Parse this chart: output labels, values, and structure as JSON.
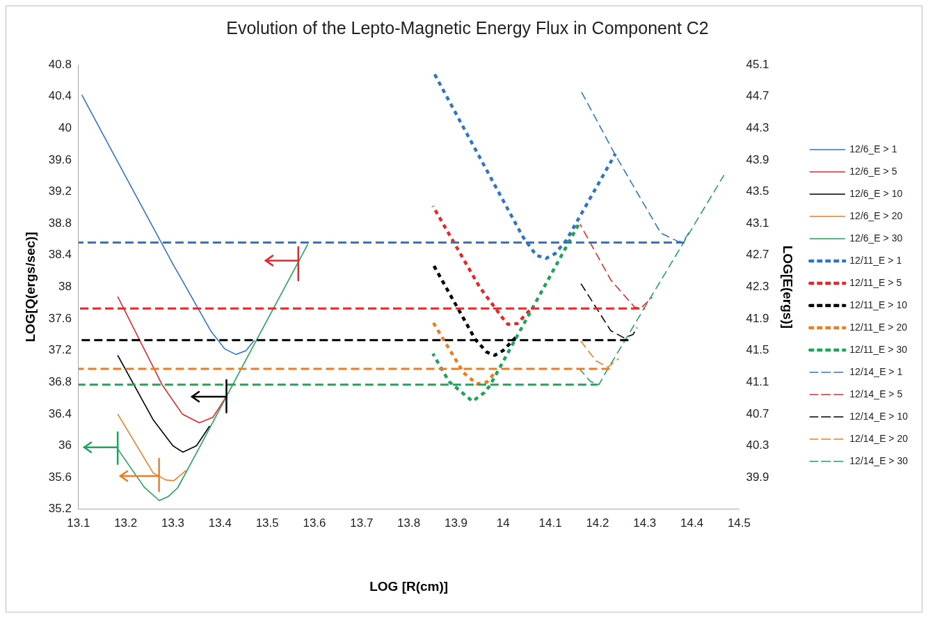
{
  "chart_data": {
    "type": "line",
    "title": "Evolution of the Lepto-Magnetic Energy Flux in Component C2",
    "xlabel": "LOG [R(cm)]",
    "ylabel": "LOG[Q(ergs/sec)]",
    "y2label": "LOG[E(ergs)]",
    "xlim": [
      13.1,
      14.5
    ],
    "xticks": [
      13.1,
      13.2,
      13.3,
      13.4,
      13.5,
      13.6,
      13.7,
      13.8,
      13.9,
      14,
      14.1,
      14.2,
      14.3,
      14.4,
      14.5
    ],
    "ylim": [
      35.2,
      40.8
    ],
    "yticks": [
      35.2,
      35.6,
      36,
      36.4,
      36.8,
      37.2,
      37.6,
      38,
      38.4,
      38.8,
      39.2,
      39.6,
      40,
      40.4,
      40.8
    ],
    "y2lim": [
      39.5,
      45.1
    ],
    "y2ticks": [
      39.9,
      40.3,
      40.7,
      41.1,
      41.5,
      41.9,
      42.3,
      42.7,
      43.1,
      43.5,
      43.9,
      44.3,
      44.7,
      45.1
    ],
    "legend": "right",
    "marker": "none",
    "series": [
      {
        "name": "12/6_E > 1",
        "color": "#2e75c8",
        "line_style": "solid",
        "x": [
          13.107,
          13.2,
          13.3,
          13.38,
          13.41,
          13.434,
          13.455,
          13.473
        ],
        "values": [
          40.42,
          39.39,
          38.29,
          37.45,
          37.22,
          37.15,
          37.2,
          37.33
        ]
      },
      {
        "name": "12/6_E > 5",
        "color": "#e8262a",
        "line_style": "solid",
        "x": [
          13.183,
          13.277,
          13.32,
          13.356,
          13.385,
          13.413
        ],
        "values": [
          37.88,
          36.77,
          36.4,
          36.29,
          36.36,
          36.62
        ]
      },
      {
        "name": "12/6_E > 10",
        "color": "#000000",
        "line_style": "solid",
        "x": [
          13.183,
          13.258,
          13.3,
          13.321,
          13.35,
          13.378
        ],
        "values": [
          37.14,
          36.33,
          36.0,
          35.92,
          36.0,
          36.25
        ]
      },
      {
        "name": "12/6_E > 20",
        "color": "#f07c22",
        "line_style": "solid",
        "x": [
          13.183,
          13.258,
          13.285,
          13.302,
          13.328
        ],
        "values": [
          36.4,
          35.66,
          35.57,
          35.56,
          35.69
        ]
      },
      {
        "name": "12/6_E > 30",
        "color": "#1fa55a",
        "line_style": "solid",
        "x": [
          13.183,
          13.239,
          13.271,
          13.29,
          13.31,
          13.35,
          13.45,
          13.586
        ],
        "values": [
          35.96,
          35.48,
          35.31,
          35.36,
          35.47,
          35.91,
          37.03,
          38.54
        ]
      },
      {
        "name": "12/11_E > 1",
        "color": "#2e75c8",
        "line_style": "dotted",
        "x": [
          13.851,
          14.041,
          14.07,
          14.091,
          14.11,
          14.134,
          14.238
        ],
        "values": [
          40.72,
          38.64,
          38.4,
          38.36,
          38.42,
          38.59,
          39.68
        ]
      },
      {
        "name": "12/11_E > 5",
        "color": "#e8262a",
        "line_style": "dotted",
        "x": [
          13.851,
          13.95,
          14.0,
          14.01,
          14.03,
          14.063
        ],
        "values": [
          39.02,
          38.0,
          37.6,
          37.53,
          37.54,
          37.75
        ]
      },
      {
        "name": "12/11_E > 10",
        "color": "#000000",
        "line_style": "dotted",
        "x": [
          13.851,
          13.941,
          13.965,
          13.982,
          14.0,
          14.029
        ],
        "values": [
          38.29,
          37.34,
          37.18,
          37.14,
          37.2,
          37.38
        ]
      },
      {
        "name": "12/11_E > 20",
        "color": "#f07c22",
        "line_style": "dotted",
        "x": [
          13.851,
          13.916,
          13.944,
          13.965,
          13.985
        ],
        "values": [
          37.56,
          36.92,
          36.78,
          36.8,
          36.94
        ]
      },
      {
        "name": "12/11_E > 30",
        "color": "#1fa55a",
        "line_style": "dotted",
        "x": [
          13.851,
          13.885,
          13.935,
          13.96,
          13.972,
          14.16
        ],
        "values": [
          37.16,
          36.81,
          36.56,
          36.67,
          36.76,
          38.79
        ]
      },
      {
        "name": "12/14_E > 1",
        "color": "#2e75c8",
        "line_style": "dashed",
        "x": [
          14.163,
          14.238,
          14.334,
          14.372,
          14.385,
          14.396
        ],
        "values": [
          40.49,
          39.66,
          38.68,
          38.57,
          38.6,
          38.71
        ]
      },
      {
        "name": "12/14_E > 5",
        "color": "#e8262a",
        "line_style": "dashed",
        "x": [
          14.163,
          14.228,
          14.278,
          14.291,
          14.316
        ],
        "values": [
          38.79,
          38.09,
          37.75,
          37.73,
          37.87
        ]
      },
      {
        "name": "12/14_E > 10",
        "color": "#000000",
        "line_style": "dashed",
        "x": [
          14.163,
          14.228,
          14.256,
          14.275,
          14.284
        ],
        "values": [
          38.06,
          37.45,
          37.36,
          37.4,
          37.49
        ]
      },
      {
        "name": "12/14_E > 20",
        "color": "#f07c22",
        "line_style": "dashed",
        "x": [
          14.163,
          14.197,
          14.222,
          14.245
        ],
        "values": [
          37.33,
          37.07,
          36.99,
          37.1
        ]
      },
      {
        "name": "12/14_E > 30",
        "color": "#1fa55a",
        "line_style": "dashed",
        "x": [
          14.163,
          14.185,
          14.203,
          14.215,
          14.468
        ],
        "values": [
          36.96,
          36.81,
          36.77,
          36.9,
          39.41
        ]
      },
      {
        "color": "#2e75c8",
        "line_style": "dashed",
        "x": [
          13.1,
          14.39
        ],
        "values": [
          38.56,
          38.56
        ]
      },
      {
        "color": "#e8262a",
        "line_style": "dashed",
        "x": [
          13.1,
          14.3
        ],
        "values": [
          37.73,
          37.73
        ]
      },
      {
        "color": "#000000",
        "line_style": "dashed",
        "x": [
          13.1,
          14.27
        ],
        "values": [
          37.33,
          37.33
        ]
      },
      {
        "color": "#f07c22",
        "line_style": "dashed",
        "x": [
          13.1,
          14.23
        ],
        "values": [
          36.97,
          36.97
        ]
      },
      {
        "color": "#1fa55a",
        "line_style": "dashed",
        "x": [
          13.1,
          14.2
        ],
        "values": [
          36.77,
          36.77
        ]
      }
    ]
  }
}
